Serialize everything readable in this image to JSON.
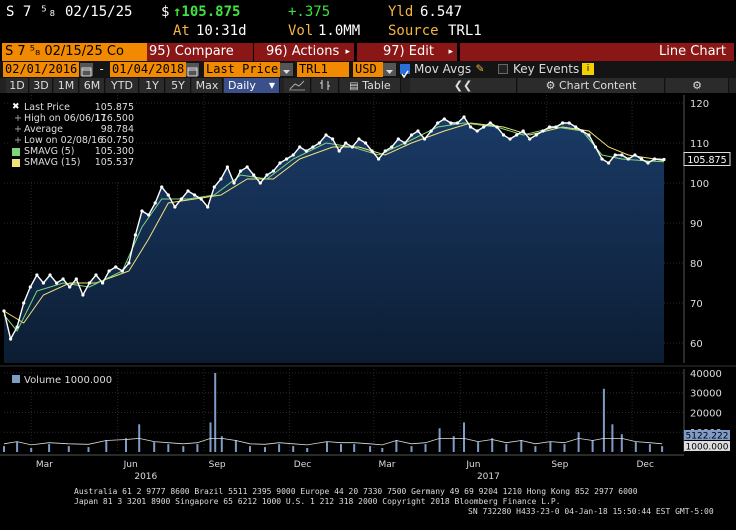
{
  "header": {
    "ticker": "S 7 ⁵₈ 02/15/25",
    "price_prefix": "$",
    "price": "↑105.875",
    "change": "+.375",
    "yld_label": "Yld",
    "yld_value": "6.547",
    "at_label": "At",
    "at_value": "10:31d",
    "vol_label": "Vol",
    "vol_value": "1.0MM",
    "source_label": "Source",
    "source_value": "TRL1"
  },
  "function_bar": {
    "security": "S 7 ⁵₈ 02/15/25 Co",
    "compare": "95) Compare",
    "actions": "96) Actions",
    "edit": "97) Edit",
    "dropdown_glyph": "▸",
    "chart_type": "Line Chart"
  },
  "range_bar": {
    "start_date": "02/01/2016",
    "end_date": "01/04/2018",
    "separator": "-",
    "field": "Last Price",
    "source": "TRL1",
    "currency": "USD",
    "mov_avgs_label": "Mov Avgs",
    "key_events_label": "Key Events"
  },
  "period_bar": {
    "buttons": [
      "1D",
      "3D",
      "1M",
      "6M",
      "YTD",
      "1Y",
      "5Y",
      "Max"
    ],
    "frequency": "Daily",
    "table_label": "Table",
    "chart_content_label": "Chart Content"
  },
  "legend": {
    "items": [
      {
        "label": "Last Price",
        "value": "105.875",
        "marker": "✖"
      },
      {
        "label": "High on 06/06/17",
        "value": "116.500",
        "marker": "+"
      },
      {
        "label": "Average",
        "value": "98.784",
        "marker": "+"
      },
      {
        "label": "Low on 02/08/16",
        "value": "60.750",
        "marker": "+"
      },
      {
        "label": "SMAVG (5)",
        "value": "105.300",
        "color": "#7dd67d"
      },
      {
        "label": "SMAVG (15)",
        "value": "105.537",
        "color": "#f0e27a"
      }
    ]
  },
  "volume_legend": {
    "label": "Volume",
    "value": "1000.000"
  },
  "colors": {
    "price_line": "#ffffff",
    "smavg5": "#7dd67d",
    "smavg15": "#f0e27a",
    "area_top": "#1a3a66",
    "area_bottom": "#0c1d33",
    "volume_bar": "#7f9cc8",
    "accent_orange": "#f18a00"
  },
  "chart_data": [
    {
      "type": "line",
      "title": "",
      "y_ticks": [
        60,
        70,
        80,
        90,
        100,
        110,
        120
      ],
      "ylim": [
        55,
        122
      ],
      "y_axis_side": "right",
      "x_ticks": [
        {
          "label": "Mar",
          "date": "2016-03"
        },
        {
          "label": "Jun",
          "date": "2016-06"
        },
        {
          "label": "Sep",
          "date": "2016-09"
        },
        {
          "label": "Dec",
          "date": "2016-12"
        },
        {
          "label": "Mar",
          "date": "2017-03"
        },
        {
          "label": "Jun",
          "date": "2017-06"
        },
        {
          "label": "Sep",
          "date": "2017-09"
        },
        {
          "label": "Dec",
          "date": "2017-12"
        }
      ],
      "year_labels": [
        {
          "label": "2016",
          "date": "2016-07"
        },
        {
          "label": "2017",
          "date": "2017-07"
        }
      ],
      "x_start": "2016-02-01",
      "x_end": "2018-01-04",
      "last_value_label": "105.875",
      "grid": true,
      "series": [
        {
          "name": "Last Price",
          "points": [
            [
              "2016-02-01",
              68
            ],
            [
              "2016-02-08",
              61
            ],
            [
              "2016-02-15",
              64
            ],
            [
              "2016-02-22",
              70
            ],
            [
              "2016-02-29",
              74
            ],
            [
              "2016-03-07",
              77
            ],
            [
              "2016-03-14",
              75
            ],
            [
              "2016-03-21",
              77
            ],
            [
              "2016-03-28",
              75
            ],
            [
              "2016-04-04",
              76
            ],
            [
              "2016-04-11",
              74
            ],
            [
              "2016-04-18",
              76
            ],
            [
              "2016-04-25",
              72
            ],
            [
              "2016-05-02",
              75
            ],
            [
              "2016-05-09",
              77
            ],
            [
              "2016-05-16",
              75
            ],
            [
              "2016-05-23",
              78
            ],
            [
              "2016-05-30",
              79
            ],
            [
              "2016-06-06",
              78
            ],
            [
              "2016-06-13",
              80
            ],
            [
              "2016-06-20",
              87
            ],
            [
              "2016-06-27",
              93
            ],
            [
              "2016-07-04",
              92
            ],
            [
              "2016-07-11",
              95
            ],
            [
              "2016-07-18",
              99
            ],
            [
              "2016-07-25",
              97
            ],
            [
              "2016-08-01",
              94
            ],
            [
              "2016-08-08",
              96
            ],
            [
              "2016-08-15",
              98
            ],
            [
              "2016-08-22",
              97
            ],
            [
              "2016-08-29",
              96
            ],
            [
              "2016-09-05",
              94
            ],
            [
              "2016-09-12",
              99
            ],
            [
              "2016-09-19",
              101
            ],
            [
              "2016-09-26",
              104
            ],
            [
              "2016-10-03",
              100
            ],
            [
              "2016-10-10",
              103
            ],
            [
              "2016-10-17",
              104
            ],
            [
              "2016-10-24",
              102
            ],
            [
              "2016-10-31",
              100
            ],
            [
              "2016-11-07",
              102
            ],
            [
              "2016-11-14",
              103
            ],
            [
              "2016-11-21",
              105
            ],
            [
              "2016-11-28",
              106
            ],
            [
              "2016-12-05",
              107
            ],
            [
              "2016-12-12",
              109
            ],
            [
              "2016-12-19",
              108
            ],
            [
              "2016-12-26",
              109
            ],
            [
              "2017-01-02",
              110
            ],
            [
              "2017-01-09",
              112
            ],
            [
              "2017-01-16",
              111
            ],
            [
              "2017-01-23",
              108
            ],
            [
              "2017-01-30",
              110
            ],
            [
              "2017-02-06",
              109
            ],
            [
              "2017-02-13",
              111
            ],
            [
              "2017-02-20",
              110
            ],
            [
              "2017-02-27",
              108
            ],
            [
              "2017-03-06",
              106
            ],
            [
              "2017-03-13",
              108
            ],
            [
              "2017-03-20",
              109
            ],
            [
              "2017-03-27",
              111
            ],
            [
              "2017-04-03",
              110
            ],
            [
              "2017-04-10",
              112
            ],
            [
              "2017-04-17",
              113
            ],
            [
              "2017-04-24",
              111
            ],
            [
              "2017-05-01",
              113
            ],
            [
              "2017-05-08",
              115
            ],
            [
              "2017-05-15",
              116
            ],
            [
              "2017-05-22",
              115
            ],
            [
              "2017-05-29",
              115
            ],
            [
              "2017-06-05",
              116.5
            ],
            [
              "2017-06-12",
              114
            ],
            [
              "2017-06-19",
              113
            ],
            [
              "2017-06-26",
              114
            ],
            [
              "2017-07-03",
              115
            ],
            [
              "2017-07-10",
              114
            ],
            [
              "2017-07-17",
              112
            ],
            [
              "2017-07-24",
              111
            ],
            [
              "2017-07-31",
              112
            ],
            [
              "2017-08-07",
              113
            ],
            [
              "2017-08-14",
              111
            ],
            [
              "2017-08-21",
              112
            ],
            [
              "2017-08-28",
              113
            ],
            [
              "2017-09-04",
              114
            ],
            [
              "2017-09-11",
              114
            ],
            [
              "2017-09-18",
              115
            ],
            [
              "2017-09-25",
              115
            ],
            [
              "2017-10-02",
              114
            ],
            [
              "2017-10-09",
              113
            ],
            [
              "2017-10-16",
              112
            ],
            [
              "2017-10-23",
              109
            ],
            [
              "2017-10-30",
              106
            ],
            [
              "2017-11-06",
              105
            ],
            [
              "2017-11-13",
              107
            ],
            [
              "2017-11-20",
              107
            ],
            [
              "2017-11-27",
              106
            ],
            [
              "2017-12-04",
              107
            ],
            [
              "2017-12-11",
              106
            ],
            [
              "2017-12-18",
              105
            ],
            [
              "2017-12-25",
              106
            ],
            [
              "2018-01-04",
              105.875
            ]
          ]
        },
        {
          "name": "SMAVG (5)",
          "points": [
            [
              "2016-02-01",
              67
            ],
            [
              "2016-02-15",
              63
            ],
            [
              "2016-03-07",
              73
            ],
            [
              "2016-04-04",
              75
            ],
            [
              "2016-05-02",
              74
            ],
            [
              "2016-06-06",
              78
            ],
            [
              "2016-06-27",
              89
            ],
            [
              "2016-07-18",
              96
            ],
            [
              "2016-08-15",
              96
            ],
            [
              "2016-09-12",
              97
            ],
            [
              "2016-10-10",
              102
            ],
            [
              "2016-11-07",
              101
            ],
            [
              "2016-12-05",
              106
            ],
            [
              "2017-01-09",
              110
            ],
            [
              "2017-02-06",
              109
            ],
            [
              "2017-03-06",
              107
            ],
            [
              "2017-04-03",
              110
            ],
            [
              "2017-05-08",
              114
            ],
            [
              "2017-06-05",
              115
            ],
            [
              "2017-07-10",
              114
            ],
            [
              "2017-08-07",
              112
            ],
            [
              "2017-09-11",
              114
            ],
            [
              "2017-10-09",
              113
            ],
            [
              "2017-10-30",
              107
            ],
            [
              "2017-11-20",
              106
            ],
            [
              "2017-12-18",
              105.5
            ],
            [
              "2018-01-04",
              105.3
            ]
          ]
        },
        {
          "name": "SMAVG (15)",
          "points": [
            [
              "2016-02-01",
              68
            ],
            [
              "2016-02-22",
              65
            ],
            [
              "2016-03-14",
              72
            ],
            [
              "2016-04-11",
              75
            ],
            [
              "2016-05-09",
              75
            ],
            [
              "2016-06-13",
              78
            ],
            [
              "2016-07-04",
              86
            ],
            [
              "2016-07-25",
              95
            ],
            [
              "2016-08-22",
              96
            ],
            [
              "2016-09-19",
              97
            ],
            [
              "2016-10-17",
              101
            ],
            [
              "2016-11-14",
              101
            ],
            [
              "2016-12-12",
              106
            ],
            [
              "2017-01-16",
              109
            ],
            [
              "2017-02-13",
              109
            ],
            [
              "2017-03-13",
              107
            ],
            [
              "2017-04-10",
              110
            ],
            [
              "2017-05-15",
              113
            ],
            [
              "2017-06-12",
              115
            ],
            [
              "2017-07-17",
              114
            ],
            [
              "2017-08-14",
              112
            ],
            [
              "2017-09-18",
              114
            ],
            [
              "2017-10-16",
              113
            ],
            [
              "2017-11-06",
              109
            ],
            [
              "2017-11-27",
              107
            ],
            [
              "2017-12-25",
              106
            ],
            [
              "2018-01-04",
              105.537
            ]
          ]
        }
      ]
    },
    {
      "type": "bar",
      "title": "",
      "y_ticks": [
        10000,
        20000,
        30000,
        40000
      ],
      "ylim": [
        0,
        42000
      ],
      "y_axis_side": "right",
      "last_value_labels": [
        "5122.222",
        "1000.000"
      ],
      "grid": true,
      "series": [
        {
          "name": "Volume",
          "bars": [
            [
              "2016-02-01",
              3000
            ],
            [
              "2016-02-15",
              5000
            ],
            [
              "2016-03-01",
              2000
            ],
            [
              "2016-03-20",
              4000
            ],
            [
              "2016-04-10",
              3000
            ],
            [
              "2016-05-01",
              2500
            ],
            [
              "2016-05-20",
              6000
            ],
            [
              "2016-06-10",
              7000
            ],
            [
              "2016-06-24",
              14000
            ],
            [
              "2016-07-10",
              5000
            ],
            [
              "2016-07-25",
              4000
            ],
            [
              "2016-08-10",
              3000
            ],
            [
              "2016-08-25",
              4000
            ],
            [
              "2016-09-08",
              15000
            ],
            [
              "2016-09-13",
              40000
            ],
            [
              "2016-09-20",
              8000
            ],
            [
              "2016-10-05",
              6000
            ],
            [
              "2016-10-20",
              3000
            ],
            [
              "2016-11-05",
              2500
            ],
            [
              "2016-11-20",
              4000
            ],
            [
              "2016-12-05",
              3000
            ],
            [
              "2016-12-20",
              2000
            ],
            [
              "2017-01-10",
              5000
            ],
            [
              "2017-01-25",
              4000
            ],
            [
              "2017-02-08",
              4000
            ],
            [
              "2017-02-25",
              3000
            ],
            [
              "2017-03-10",
              2000
            ],
            [
              "2017-03-25",
              6000
            ],
            [
              "2017-04-10",
              3000
            ],
            [
              "2017-04-25",
              4000
            ],
            [
              "2017-05-10",
              12000
            ],
            [
              "2017-05-25",
              8000
            ],
            [
              "2017-06-05",
              15000
            ],
            [
              "2017-06-20",
              5000
            ],
            [
              "2017-07-05",
              7000
            ],
            [
              "2017-07-20",
              4000
            ],
            [
              "2017-08-05",
              6000
            ],
            [
              "2017-08-20",
              3000
            ],
            [
              "2017-09-05",
              5000
            ],
            [
              "2017-09-20",
              4000
            ],
            [
              "2017-10-05",
              10000
            ],
            [
              "2017-10-20",
              6000
            ],
            [
              "2017-11-01",
              32000
            ],
            [
              "2017-11-10",
              14000
            ],
            [
              "2017-11-20",
              9000
            ],
            [
              "2017-12-05",
              5000
            ],
            [
              "2017-12-20",
              4000
            ],
            [
              "2018-01-02",
              3000
            ]
          ]
        }
      ]
    }
  ],
  "footer": {
    "line1": "Australia 61 2 9777 8600 Brazil 5511 2395 9000 Europe 44 20 7330 7500 Germany 49 69 9204 1210 Hong Kong 852 2977 6000",
    "line2": "Japan 81 3 3201 8900        Singapore 65 6212 1000      U.S. 1 212 318 2000             Copyright 2018 Bloomberg Finance L.P.",
    "line3": "SN 732280 H433-23-0 04-Jan-18 15:50:44 EST  GMT-5:00"
  }
}
